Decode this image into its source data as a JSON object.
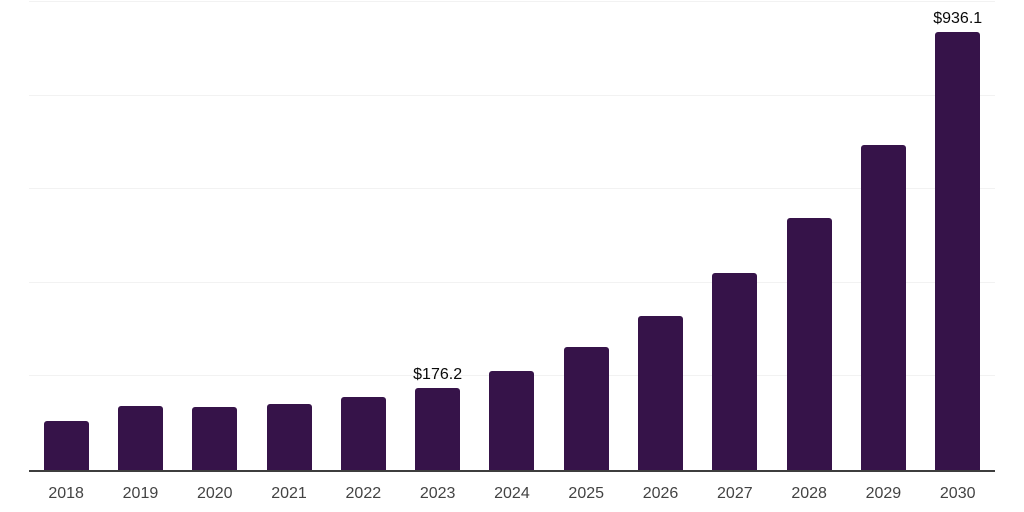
{
  "chart_data": {
    "type": "bar",
    "title": "",
    "xlabel": "",
    "ylabel": "",
    "categories": [
      "2018",
      "2019",
      "2020",
      "2021",
      "2022",
      "2023",
      "2024",
      "2025",
      "2026",
      "2027",
      "2028",
      "2029",
      "2030"
    ],
    "values": [
      104.8,
      136.8,
      135.7,
      141.0,
      155.9,
      176.2,
      210.7,
      261.9,
      329.2,
      420.9,
      539.0,
      693.7,
      936.1
    ],
    "data_labels": {
      "2023": "$176.2",
      "2030": "$936.1"
    },
    "ylim": [
      0,
      1000
    ],
    "grid": true,
    "grid_step": 200,
    "legend": false,
    "colors": {
      "bar": "#361349",
      "gridline": "#f2f2f2",
      "axis_line": "#3e3e3e",
      "tick_label": "#434343",
      "data_label": "#0a0a0a",
      "background": "#ffffff"
    }
  }
}
